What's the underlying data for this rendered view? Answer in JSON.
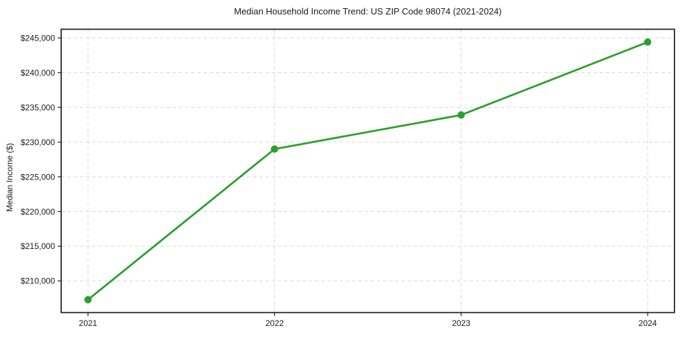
{
  "chart_data": {
    "type": "line",
    "title": "Median Household Income Trend: US ZIP Code 98074 (2021-2024)",
    "xlabel": "",
    "ylabel": "Median Income ($)",
    "categories": [
      "2021",
      "2022",
      "2023",
      "2024"
    ],
    "values": [
      207300,
      229000,
      233900,
      244400
    ],
    "ylim": [
      205445,
      246255
    ],
    "yticks": [
      {
        "value": 210000,
        "label": "$210,000"
      },
      {
        "value": 215000,
        "label": "$215,000"
      },
      {
        "value": 220000,
        "label": "$220,000"
      },
      {
        "value": 225000,
        "label": "$225,000"
      },
      {
        "value": 230000,
        "label": "$230,000"
      },
      {
        "value": 235000,
        "label": "$235,000"
      },
      {
        "value": 240000,
        "label": "$240,000"
      },
      {
        "value": 245000,
        "label": "$245,000"
      }
    ],
    "grid": true,
    "grid_linestyle": "dashed",
    "legend": "none",
    "colors": {
      "line": "#2ca02c",
      "marker": "#2ca02c",
      "grid": "#d8d8d8",
      "axis": "#1a1a1a",
      "text": "#1a1a1a",
      "background": "#ffffff"
    }
  }
}
